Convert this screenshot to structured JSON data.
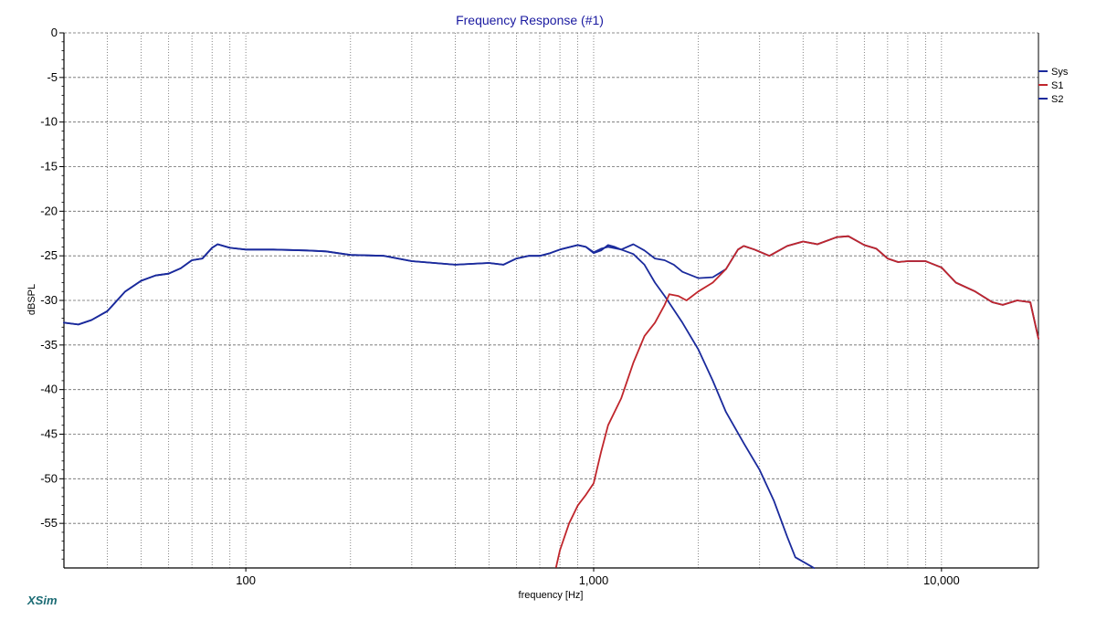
{
  "app_label": "XSim",
  "chart_data": {
    "type": "line",
    "title": "Frequency Response (#1)",
    "xlabel": "frequency [Hz]",
    "ylabel": "dBSPL",
    "xscale": "log",
    "xlim": [
      30,
      19000
    ],
    "ylim": [
      -60,
      0
    ],
    "x_ticks": [
      100,
      1000,
      10000
    ],
    "x_tick_labels": [
      "100",
      "1,000",
      "10,000"
    ],
    "y_ticks": [
      0,
      -5,
      -10,
      -15,
      -20,
      -25,
      -30,
      -35,
      -40,
      -45,
      -50,
      -55
    ],
    "y_tick_labels": [
      "0",
      "-5",
      "-10",
      "-15",
      "-20",
      "-25",
      "-30",
      "-35",
      "-40",
      "-45",
      "-50",
      "-55"
    ],
    "grid": true,
    "legend_position": "top-right",
    "series": [
      {
        "name": "Sys",
        "color": "#1a2a9c",
        "points": [
          [
            30,
            -32.5
          ],
          [
            33,
            -32.7
          ],
          [
            36,
            -32.2
          ],
          [
            40,
            -31.2
          ],
          [
            45,
            -29.0
          ],
          [
            50,
            -27.8
          ],
          [
            55,
            -27.2
          ],
          [
            60,
            -27.0
          ],
          [
            65,
            -26.4
          ],
          [
            70,
            -25.5
          ],
          [
            75,
            -25.3
          ],
          [
            80,
            -24.1
          ],
          [
            83,
            -23.7
          ],
          [
            90,
            -24.1
          ],
          [
            100,
            -24.3
          ],
          [
            120,
            -24.3
          ],
          [
            150,
            -24.4
          ],
          [
            170,
            -24.5
          ],
          [
            200,
            -24.9
          ],
          [
            250,
            -25.0
          ],
          [
            300,
            -25.6
          ],
          [
            400,
            -26.0
          ],
          [
            500,
            -25.8
          ],
          [
            550,
            -26.0
          ],
          [
            600,
            -25.3
          ],
          [
            650,
            -25.0
          ],
          [
            700,
            -25.0
          ],
          [
            750,
            -24.7
          ],
          [
            800,
            -24.3
          ],
          [
            900,
            -23.8
          ],
          [
            950,
            -24.0
          ],
          [
            1000,
            -24.7
          ],
          [
            1050,
            -24.4
          ],
          [
            1100,
            -23.8
          ],
          [
            1150,
            -24.0
          ],
          [
            1200,
            -24.3
          ],
          [
            1300,
            -23.7
          ],
          [
            1400,
            -24.4
          ],
          [
            1500,
            -25.3
          ],
          [
            1600,
            -25.5
          ],
          [
            1700,
            -26.0
          ],
          [
            1800,
            -26.8
          ],
          [
            2000,
            -27.5
          ],
          [
            2200,
            -27.4
          ],
          [
            2400,
            -26.5
          ],
          [
            2600,
            -24.3
          ],
          [
            2700,
            -23.9
          ],
          [
            2900,
            -24.3
          ],
          [
            3200,
            -25.0
          ],
          [
            3600,
            -23.9
          ],
          [
            4000,
            -23.4
          ],
          [
            4400,
            -23.7
          ],
          [
            5000,
            -22.9
          ],
          [
            5400,
            -22.8
          ],
          [
            6000,
            -23.8
          ],
          [
            6500,
            -24.2
          ],
          [
            7000,
            -25.3
          ],
          [
            7500,
            -25.7
          ],
          [
            8000,
            -25.6
          ],
          [
            9000,
            -25.6
          ],
          [
            10000,
            -26.3
          ],
          [
            11000,
            -28.0
          ],
          [
            12500,
            -29.0
          ],
          [
            14000,
            -30.2
          ],
          [
            15000,
            -30.5
          ],
          [
            16500,
            -30.0
          ],
          [
            18000,
            -30.2
          ],
          [
            19000,
            -34.3
          ]
        ]
      },
      {
        "name": "S1",
        "color": "#c0262c",
        "points": [
          [
            780,
            -59.9
          ],
          [
            800,
            -58.0
          ],
          [
            850,
            -55.0
          ],
          [
            900,
            -53.0
          ],
          [
            950,
            -51.8
          ],
          [
            1000,
            -50.5
          ],
          [
            1050,
            -47.0
          ],
          [
            1100,
            -44.0
          ],
          [
            1200,
            -41.0
          ],
          [
            1300,
            -37.0
          ],
          [
            1400,
            -34.0
          ],
          [
            1500,
            -32.5
          ],
          [
            1600,
            -30.5
          ],
          [
            1650,
            -29.3
          ],
          [
            1750,
            -29.5
          ],
          [
            1850,
            -30.0
          ],
          [
            2000,
            -29.0
          ],
          [
            2200,
            -28.0
          ],
          [
            2400,
            -26.5
          ],
          [
            2600,
            -24.3
          ],
          [
            2700,
            -23.9
          ],
          [
            2900,
            -24.3
          ],
          [
            3200,
            -25.0
          ],
          [
            3600,
            -23.9
          ],
          [
            4000,
            -23.4
          ],
          [
            4400,
            -23.7
          ],
          [
            5000,
            -22.9
          ],
          [
            5400,
            -22.8
          ],
          [
            6000,
            -23.8
          ],
          [
            6500,
            -24.2
          ],
          [
            7000,
            -25.3
          ],
          [
            7500,
            -25.7
          ],
          [
            8000,
            -25.6
          ],
          [
            9000,
            -25.6
          ],
          [
            10000,
            -26.3
          ],
          [
            11000,
            -28.0
          ],
          [
            12500,
            -29.0
          ],
          [
            14000,
            -30.2
          ],
          [
            15000,
            -30.5
          ],
          [
            16500,
            -30.0
          ],
          [
            18000,
            -30.2
          ],
          [
            19000,
            -34.3
          ]
        ]
      },
      {
        "name": "S2",
        "color": "#1a2a9c",
        "points": [
          [
            30,
            -32.5
          ],
          [
            33,
            -32.7
          ],
          [
            36,
            -32.2
          ],
          [
            40,
            -31.2
          ],
          [
            45,
            -29.0
          ],
          [
            50,
            -27.8
          ],
          [
            55,
            -27.2
          ],
          [
            60,
            -27.0
          ],
          [
            65,
            -26.4
          ],
          [
            70,
            -25.5
          ],
          [
            75,
            -25.3
          ],
          [
            80,
            -24.1
          ],
          [
            83,
            -23.7
          ],
          [
            90,
            -24.1
          ],
          [
            100,
            -24.3
          ],
          [
            120,
            -24.3
          ],
          [
            150,
            -24.4
          ],
          [
            170,
            -24.5
          ],
          [
            200,
            -24.9
          ],
          [
            250,
            -25.0
          ],
          [
            300,
            -25.6
          ],
          [
            400,
            -26.0
          ],
          [
            500,
            -25.8
          ],
          [
            550,
            -26.0
          ],
          [
            600,
            -25.3
          ],
          [
            650,
            -25.0
          ],
          [
            700,
            -25.0
          ],
          [
            750,
            -24.7
          ],
          [
            800,
            -24.3
          ],
          [
            900,
            -23.8
          ],
          [
            950,
            -24.0
          ],
          [
            1000,
            -24.6
          ],
          [
            1050,
            -24.2
          ],
          [
            1100,
            -24.0
          ],
          [
            1200,
            -24.3
          ],
          [
            1300,
            -24.8
          ],
          [
            1400,
            -26.0
          ],
          [
            1500,
            -28.0
          ],
          [
            1600,
            -29.5
          ],
          [
            1800,
            -32.5
          ],
          [
            2000,
            -35.5
          ],
          [
            2200,
            -39.0
          ],
          [
            2400,
            -42.5
          ],
          [
            2700,
            -46.0
          ],
          [
            3000,
            -49.0
          ],
          [
            3300,
            -52.5
          ],
          [
            3600,
            -56.5
          ],
          [
            3800,
            -58.8
          ],
          [
            4000,
            -59.3
          ],
          [
            4300,
            -60.0
          ]
        ]
      }
    ]
  }
}
